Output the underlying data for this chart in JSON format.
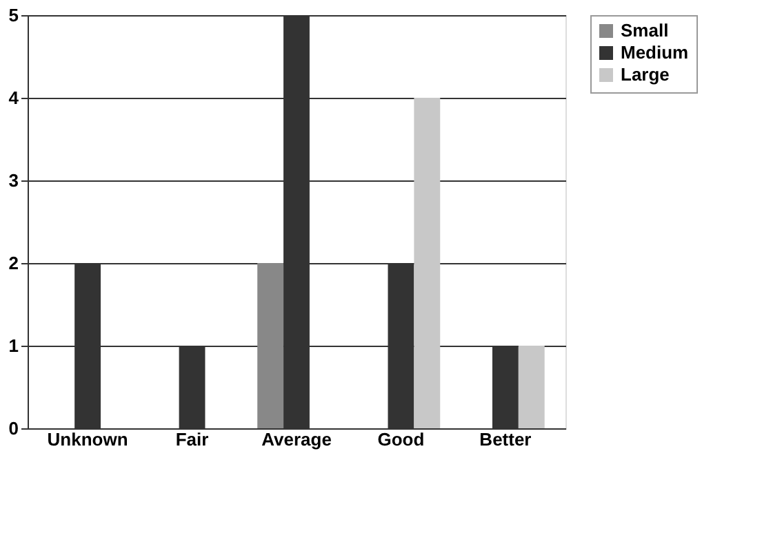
{
  "chart_data": {
    "type": "bar",
    "categories": [
      "Unknown",
      "Fair",
      "Average",
      "Good",
      "Better"
    ],
    "series": [
      {
        "name": "Small",
        "color": "#888888",
        "values": [
          0,
          0,
          2,
          0,
          0
        ]
      },
      {
        "name": "Medium",
        "color": "#333333",
        "values": [
          2,
          1,
          5,
          2,
          1
        ]
      },
      {
        "name": "Large",
        "color": "#c8c8c8",
        "values": [
          0,
          0,
          0,
          4,
          1
        ]
      }
    ],
    "ylim": [
      0,
      5
    ],
    "yticks": [
      0,
      1,
      2,
      3,
      4,
      5
    ],
    "grid": "y",
    "legend": "right"
  }
}
